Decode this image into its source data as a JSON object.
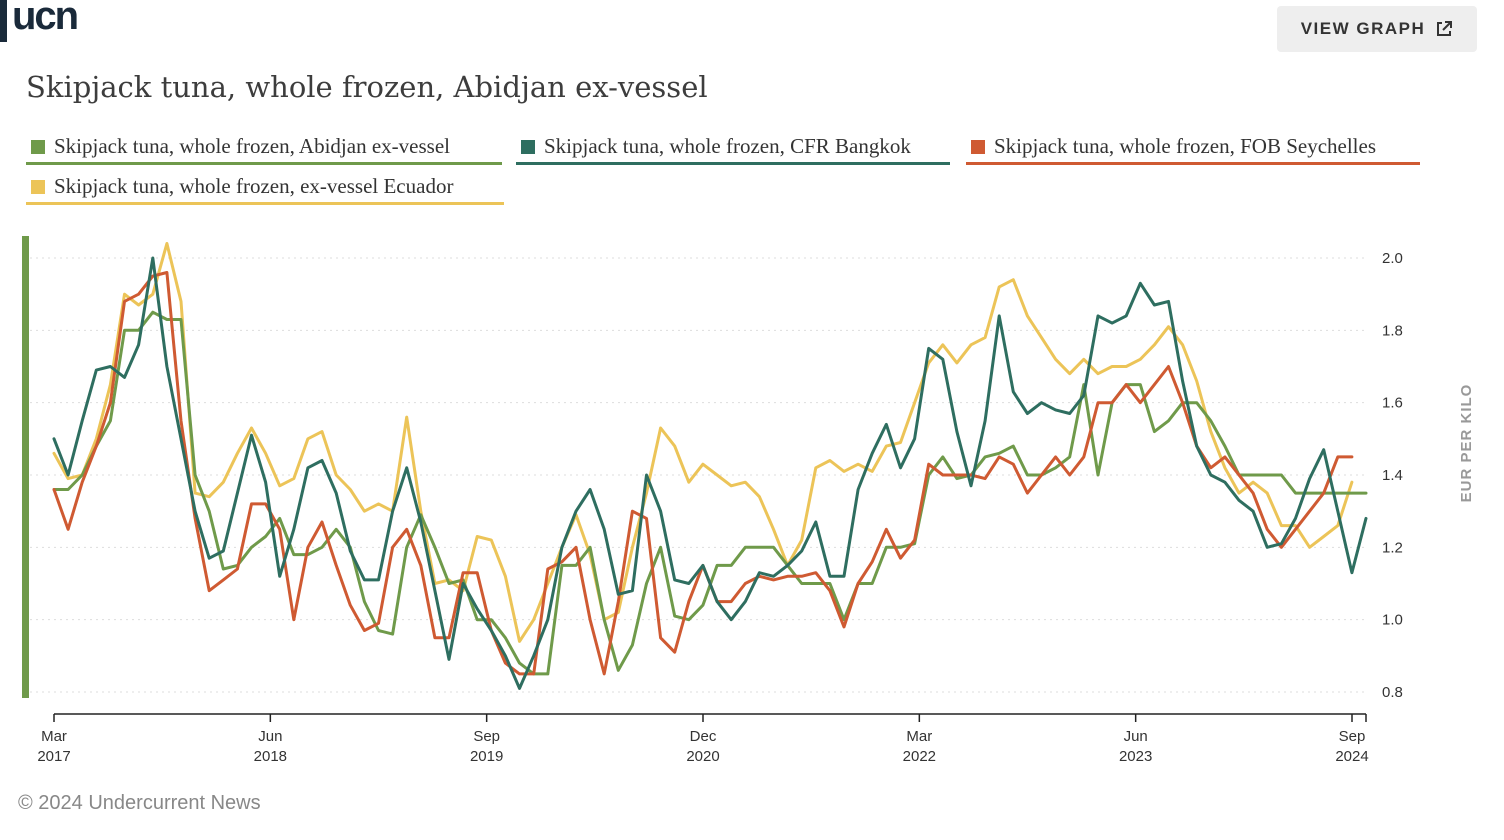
{
  "brand": {
    "logo_text": "ucn"
  },
  "header": {
    "view_graph_label": "VIEW GRAPH",
    "view_graph_icon": "external-share-icon"
  },
  "footer": {
    "copyright": "© 2024 Undercurrent News"
  },
  "colors": {
    "green": "#6f9a4a",
    "teal": "#2e6e60",
    "orange": "#cf5a32",
    "yellow": "#ecc458",
    "grid": "#dddddd",
    "axis": "#222222"
  },
  "chart_data": {
    "type": "line",
    "title": "Skipjack tuna, whole frozen, Abidjan ex-vessel",
    "ylabel": "EUR PER KILO",
    "ylim": [
      0.8,
      2.0
    ],
    "yticks": [
      "0.8",
      "1.0",
      "1.2",
      "1.4",
      "1.6",
      "1.8",
      "2.0"
    ],
    "grid": "horizontal-dotted",
    "legend_position": "top",
    "y_axis_position": "right",
    "x_start_label": "Mar 2017",
    "x_end_label": "Sep 2024",
    "xticks": [
      {
        "month": "Mar",
        "year": "2017"
      },
      {
        "month": "Jun",
        "year": "2018"
      },
      {
        "month": "Sep",
        "year": "2019"
      },
      {
        "month": "Dec",
        "year": "2020"
      },
      {
        "month": "Mar",
        "year": "2022"
      },
      {
        "month": "Jun",
        "year": "2023"
      },
      {
        "month": "Sep",
        "year": "2024"
      }
    ],
    "series": [
      {
        "name": "Skipjack tuna, whole frozen, Abidjan ex-vessel",
        "color": "#6f9a4a",
        "values": [
          1.36,
          1.36,
          1.4,
          1.48,
          1.55,
          1.8,
          1.8,
          1.85,
          1.83,
          1.83,
          1.4,
          1.3,
          1.14,
          1.15,
          1.2,
          1.23,
          1.28,
          1.18,
          1.18,
          1.2,
          1.25,
          1.2,
          1.05,
          0.97,
          0.96,
          1.2,
          1.29,
          1.2,
          1.1,
          1.11,
          1.0,
          1.0,
          0.95,
          0.88,
          0.85,
          0.85,
          1.15,
          1.15,
          1.2,
          1.0,
          0.86,
          0.93,
          1.1,
          1.2,
          1.01,
          1.0,
          1.04,
          1.15,
          1.15,
          1.2,
          1.2,
          1.2,
          1.15,
          1.1,
          1.1,
          1.1,
          1.0,
          1.1,
          1.1,
          1.2,
          1.2,
          1.21,
          1.4,
          1.45,
          1.39,
          1.4,
          1.45,
          1.46,
          1.48,
          1.4,
          1.4,
          1.42,
          1.45,
          1.65,
          1.4,
          1.6,
          1.65,
          1.65,
          1.52,
          1.55,
          1.6,
          1.6,
          1.55,
          1.48,
          1.4,
          1.4,
          1.4,
          1.4,
          1.35,
          1.35,
          1.35,
          1.35,
          1.35,
          1.35
        ]
      },
      {
        "name": "Skipjack tuna, whole frozen, CFR Bangkok",
        "color": "#2e6e60",
        "values": [
          1.5,
          1.4,
          1.55,
          1.69,
          1.7,
          1.67,
          1.76,
          2.0,
          1.7,
          1.5,
          1.3,
          1.17,
          1.19,
          1.35,
          1.51,
          1.38,
          1.12,
          1.25,
          1.42,
          1.44,
          1.35,
          1.19,
          1.11,
          1.11,
          1.3,
          1.42,
          1.27,
          1.08,
          0.89,
          1.1,
          1.03,
          0.97,
          0.9,
          0.81,
          0.9,
          1.0,
          1.2,
          1.3,
          1.36,
          1.25,
          1.07,
          1.08,
          1.4,
          1.3,
          1.11,
          1.1,
          1.15,
          1.05,
          1.0,
          1.05,
          1.13,
          1.12,
          1.15,
          1.19,
          1.27,
          1.12,
          1.12,
          1.36,
          1.46,
          1.54,
          1.42,
          1.5,
          1.75,
          1.72,
          1.52,
          1.37,
          1.55,
          1.84,
          1.63,
          1.57,
          1.6,
          1.58,
          1.57,
          1.62,
          1.84,
          1.82,
          1.84,
          1.93,
          1.87,
          1.88,
          1.66,
          1.48,
          1.4,
          1.38,
          1.33,
          1.3,
          1.2,
          1.21,
          1.28,
          1.39,
          1.47,
          1.3,
          1.13,
          1.28
        ]
      },
      {
        "name": "Skipjack tuna, whole frozen, FOB Seychelles",
        "color": "#cf5a32",
        "values": [
          1.36,
          1.25,
          1.38,
          1.48,
          1.6,
          1.88,
          1.9,
          1.95,
          1.96,
          1.55,
          1.28,
          1.08,
          1.11,
          1.14,
          1.32,
          1.32,
          1.25,
          1.0,
          1.2,
          1.27,
          1.15,
          1.04,
          0.97,
          0.99,
          1.2,
          1.25,
          1.15,
          0.95,
          0.95,
          1.13,
          1.13,
          0.97,
          0.88,
          0.85,
          0.85,
          1.14,
          1.16,
          1.2,
          1.0,
          0.85,
          1.05,
          1.3,
          1.28,
          0.95,
          0.91,
          1.05,
          1.15,
          1.05,
          1.05,
          1.1,
          1.12,
          1.11,
          1.12,
          1.12,
          1.13,
          1.08,
          0.98,
          1.1,
          1.16,
          1.25,
          1.17,
          1.22,
          1.43,
          1.4,
          1.4,
          1.4,
          1.39,
          1.45,
          1.43,
          1.35,
          1.4,
          1.45,
          1.4,
          1.45,
          1.6,
          1.6,
          1.65,
          1.6,
          1.65,
          1.7,
          1.6,
          1.48,
          1.42,
          1.45,
          1.4,
          1.35,
          1.25,
          1.2,
          1.25,
          1.3,
          1.35,
          1.45,
          1.45
        ]
      },
      {
        "name": "Skipjack tuna, whole frozen, ex-vessel Ecuador",
        "color": "#ecc458",
        "values": [
          1.46,
          1.39,
          1.4,
          1.5,
          1.65,
          1.9,
          1.87,
          1.9,
          2.04,
          1.88,
          1.35,
          1.34,
          1.38,
          1.46,
          1.53,
          1.46,
          1.37,
          1.39,
          1.5,
          1.52,
          1.4,
          1.36,
          1.3,
          1.32,
          1.3,
          1.56,
          1.3,
          1.1,
          1.11,
          1.08,
          1.23,
          1.22,
          1.12,
          0.94,
          1.0,
          1.1,
          1.2,
          1.29,
          1.18,
          1.0,
          1.02,
          1.2,
          1.35,
          1.53,
          1.48,
          1.38,
          1.43,
          1.4,
          1.37,
          1.38,
          1.34,
          1.25,
          1.15,
          1.22,
          1.42,
          1.44,
          1.41,
          1.43,
          1.41,
          1.48,
          1.49,
          1.6,
          1.71,
          1.76,
          1.71,
          1.76,
          1.78,
          1.92,
          1.94,
          1.84,
          1.78,
          1.72,
          1.68,
          1.72,
          1.68,
          1.7,
          1.7,
          1.72,
          1.76,
          1.81,
          1.76,
          1.66,
          1.52,
          1.42,
          1.35,
          1.38,
          1.35,
          1.26,
          1.26,
          1.2,
          1.23,
          1.26,
          1.38
        ]
      }
    ]
  }
}
